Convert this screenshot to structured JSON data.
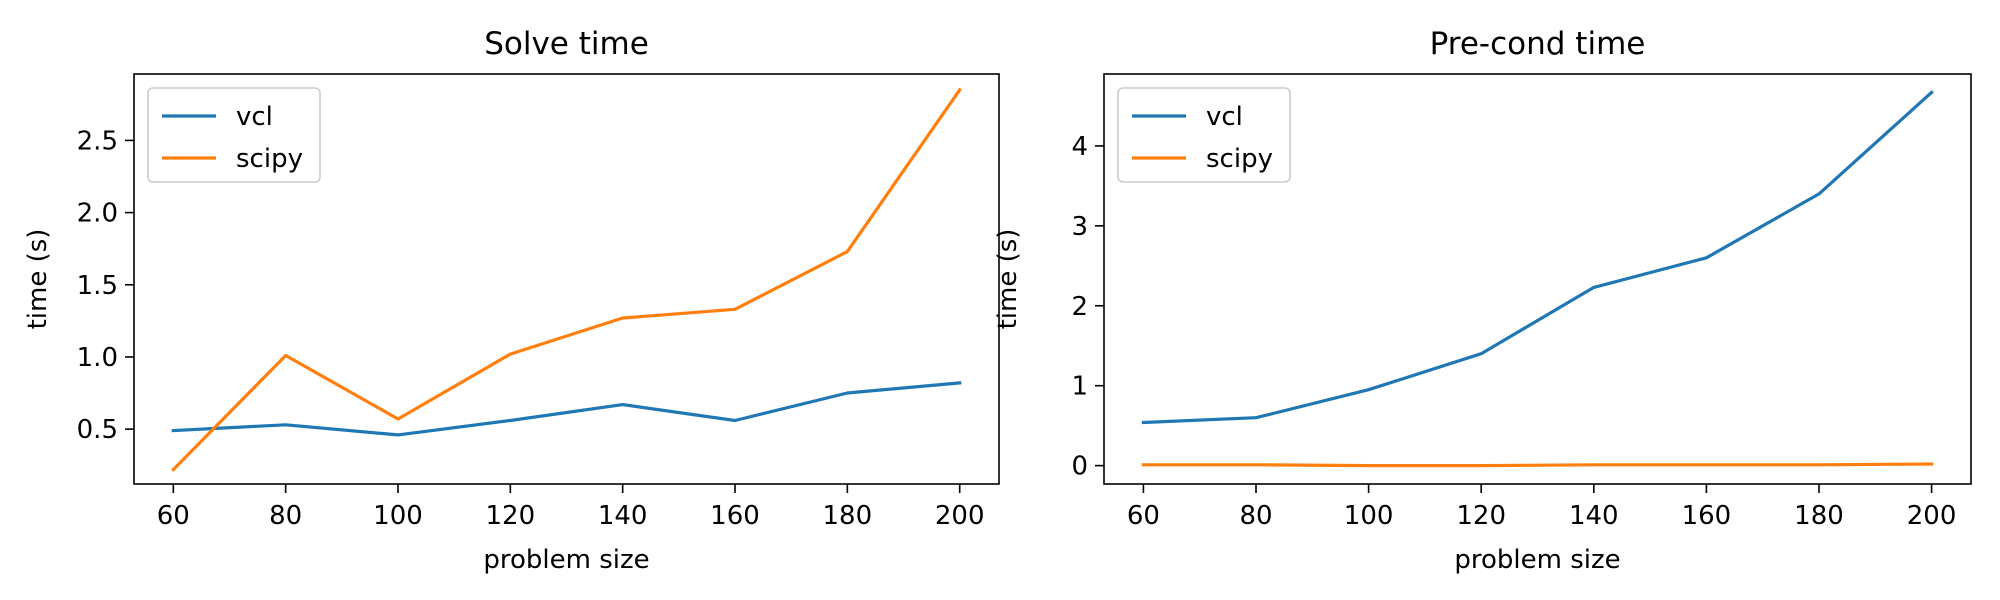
{
  "chart_data": [
    {
      "type": "line",
      "title": "Solve time",
      "xlabel": "problem size",
      "ylabel": "time (s)",
      "x": [
        60,
        80,
        100,
        120,
        140,
        160,
        180,
        200
      ],
      "xticks": [
        60,
        80,
        100,
        120,
        140,
        160,
        180,
        200
      ],
      "yticks": [
        0.5,
        1.0,
        1.5,
        2.0,
        2.5
      ],
      "ytick_format": 1,
      "xlim": [
        53,
        207
      ],
      "ylim": [
        0.12,
        2.96
      ],
      "legend": "upper-left",
      "grid": false,
      "series": [
        {
          "name": "vcl",
          "color": "#1f77b4",
          "values": [
            0.49,
            0.53,
            0.46,
            0.56,
            0.67,
            0.56,
            0.75,
            0.82
          ]
        },
        {
          "name": "scipy",
          "color": "#ff7f0e",
          "values": [
            0.22,
            1.01,
            0.57,
            1.02,
            1.27,
            1.33,
            1.73,
            2.85
          ]
        }
      ]
    },
    {
      "type": "line",
      "title": "Pre-cond time",
      "xlabel": "problem size",
      "ylabel": "time (s)",
      "x": [
        60,
        80,
        100,
        120,
        140,
        160,
        180,
        200
      ],
      "xticks": [
        60,
        80,
        100,
        120,
        140,
        160,
        180,
        200
      ],
      "yticks": [
        0,
        1,
        2,
        3,
        4
      ],
      "ytick_format": 0,
      "xlim": [
        53,
        207
      ],
      "ylim": [
        -0.23,
        4.9
      ],
      "legend": "upper-left",
      "grid": false,
      "series": [
        {
          "name": "vcl",
          "color": "#1f77b4",
          "values": [
            0.54,
            0.6,
            0.95,
            1.4,
            2.23,
            2.6,
            3.4,
            4.67
          ]
        },
        {
          "name": "scipy",
          "color": "#ff7f0e",
          "values": [
            0.01,
            0.01,
            0.0,
            0.0,
            0.01,
            0.01,
            0.01,
            0.02
          ]
        }
      ]
    }
  ]
}
